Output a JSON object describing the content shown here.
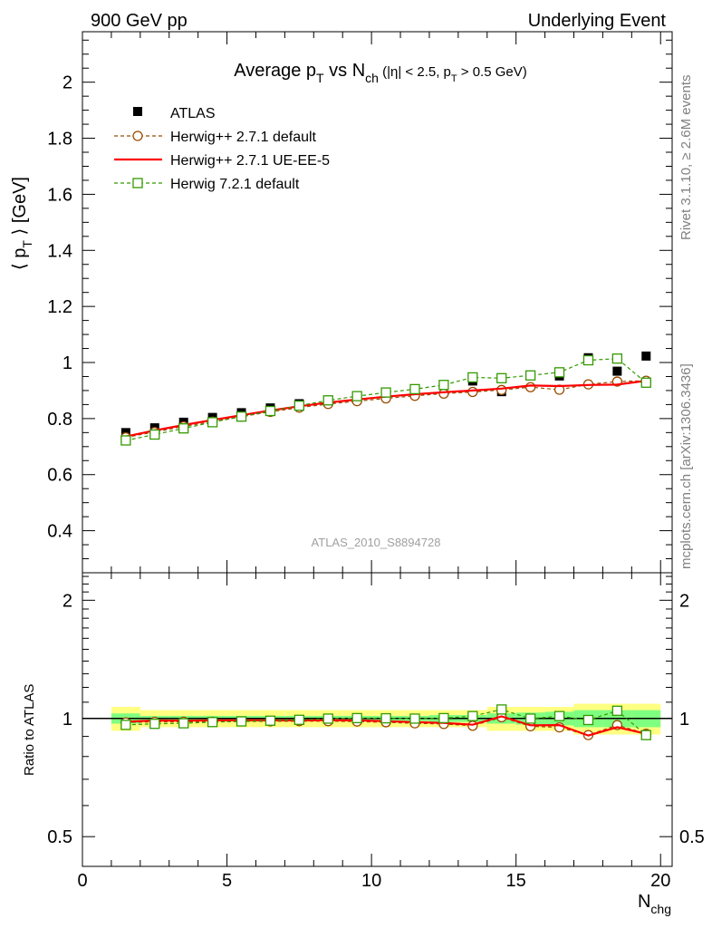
{
  "header": {
    "left": "900 GeV pp",
    "right": "Underlying Event"
  },
  "side_labels": {
    "rivet": "Rivet 3.1.10, ≥ 2.6M events",
    "mcplots": "mcplots.cern.ch [arXiv:1306.3436]"
  },
  "watermark": "ATLAS_2010_S8894728",
  "chart_data": [
    {
      "type": "line",
      "panel": "main",
      "title": "Average p_T vs N_ch (|η| < 2.5, p_T > 0.5 GeV)",
      "title_parts": {
        "a": "Average p",
        "a_sub": "T",
        "b": " vs N",
        "b_sub": "ch",
        "c": " (|η| < 2.5, p",
        "c_sub": "T",
        "d": " > 0.5 GeV)"
      },
      "ylabel": "⟨ p_T ⟩ [GeV]",
      "ylabel_parts": {
        "a": "⟨ p",
        "a_sub": "T",
        "b": " ⟩ [GeV]"
      },
      "xlim": [
        0,
        20.4
      ],
      "ylim": [
        0.25,
        2.18
      ],
      "yticks": [
        0.4,
        0.6,
        0.8,
        1.0,
        1.2,
        1.4,
        1.6,
        1.8,
        2.0
      ],
      "ytick_labels": [
        "0.4",
        "0.6",
        "0.8",
        "1",
        "1.2",
        "1.4",
        "1.6",
        "1.8",
        "2"
      ],
      "legend_position": "top-left",
      "x": [
        1.5,
        2.5,
        3.5,
        4.5,
        5.5,
        6.5,
        7.5,
        8.5,
        9.5,
        10.5,
        11.5,
        12.5,
        13.5,
        14.5,
        15.5,
        16.5,
        17.5,
        18.5,
        19.5
      ],
      "series": [
        {
          "name": "ATLAS",
          "style": "data",
          "color": "#000000",
          "values": [
            0.75,
            0.767,
            0.787,
            0.804,
            0.821,
            0.838,
            0.853,
            0.866,
            0.878,
            0.892,
            0.906,
            0.918,
            0.934,
            0.896,
            0.955,
            0.952,
            1.017,
            0.969,
            1.023
          ]
        },
        {
          "name": "Herwig++ 2.7.1 default",
          "style": "dashed-circle",
          "color": "#994c00",
          "values": [
            0.733,
            0.752,
            0.772,
            0.789,
            0.807,
            0.824,
            0.839,
            0.852,
            0.862,
            0.872,
            0.881,
            0.889,
            0.895,
            0.902,
            0.912,
            0.903,
            0.922,
            0.932,
            0.935
          ]
        },
        {
          "name": "Herwig++ 2.7.1 UE-EE-5",
          "style": "solid",
          "color": "#ff0000",
          "values": [
            0.736,
            0.758,
            0.777,
            0.795,
            0.812,
            0.829,
            0.844,
            0.857,
            0.868,
            0.878,
            0.887,
            0.894,
            0.9,
            0.907,
            0.918,
            0.916,
            0.92,
            0.921,
            0.935
          ]
        },
        {
          "name": "Herwig 7.2.1 default",
          "style": "dashed-square",
          "color": "#339900",
          "values": [
            0.722,
            0.743,
            0.765,
            0.787,
            0.807,
            0.827,
            0.846,
            0.865,
            0.88,
            0.893,
            0.905,
            0.92,
            0.947,
            0.944,
            0.954,
            0.965,
            1.008,
            1.014,
            0.928
          ]
        }
      ]
    },
    {
      "type": "line",
      "panel": "ratio",
      "ylabel": "Ratio to ATLAS",
      "xlabel": "N_chg",
      "xlabel_parts": {
        "a": "N",
        "a_sub": "chg"
      },
      "xlim": [
        0,
        20.4
      ],
      "ylim": [
        0.42,
        2.35
      ],
      "log_y": true,
      "xticks": [
        0,
        5,
        10,
        15,
        20
      ],
      "xtick_labels": [
        "0",
        "5",
        "10",
        "15",
        "20"
      ],
      "yticks": [
        0.5,
        1,
        2
      ],
      "ytick_labels": [
        "0.5",
        "1",
        "2"
      ],
      "x": [
        1.5,
        2.5,
        3.5,
        4.5,
        5.5,
        6.5,
        7.5,
        8.5,
        9.5,
        10.5,
        11.5,
        12.5,
        13.5,
        14.5,
        15.5,
        16.5,
        17.5,
        18.5,
        19.5
      ],
      "bands": {
        "stat_color": "#7fff7f",
        "total_color": "#ffff80",
        "total_half_width": [
          0.07,
          0.05,
          0.05,
          0.05,
          0.05,
          0.05,
          0.05,
          0.05,
          0.05,
          0.05,
          0.05,
          0.05,
          0.05,
          0.07,
          0.07,
          0.07,
          0.09,
          0.09,
          0.09
        ],
        "stat_half_width": [
          0.03,
          0.015,
          0.015,
          0.015,
          0.015,
          0.015,
          0.015,
          0.015,
          0.015,
          0.015,
          0.015,
          0.02,
          0.02,
          0.03,
          0.035,
          0.04,
          0.05,
          0.05,
          0.05
        ]
      },
      "series": [
        {
          "name": "Herwig++ 2.7.1 default",
          "style": "dashed-circle",
          "color": "#994c00",
          "values": [
            0.977,
            0.98,
            0.981,
            0.981,
            0.983,
            0.983,
            0.984,
            0.984,
            0.982,
            0.978,
            0.972,
            0.968,
            0.958,
            1.007,
            0.955,
            0.949,
            0.907,
            0.962,
            0.914
          ]
        },
        {
          "name": "Herwig++ 2.7.1 UE-EE-5",
          "style": "solid",
          "color": "#ff0000",
          "values": [
            0.981,
            0.988,
            0.987,
            0.989,
            0.989,
            0.989,
            0.989,
            0.99,
            0.989,
            0.984,
            0.979,
            0.974,
            0.964,
            1.012,
            0.961,
            0.962,
            0.905,
            0.95,
            0.914
          ]
        },
        {
          "name": "Herwig 7.2.1 default",
          "style": "dashed-square",
          "color": "#339900",
          "values": [
            0.963,
            0.969,
            0.972,
            0.979,
            0.983,
            0.987,
            0.992,
            0.999,
            1.002,
            1.001,
            0.999,
            1.002,
            1.014,
            1.054,
            0.999,
            1.014,
            0.991,
            1.046,
            0.907
          ]
        }
      ]
    }
  ]
}
